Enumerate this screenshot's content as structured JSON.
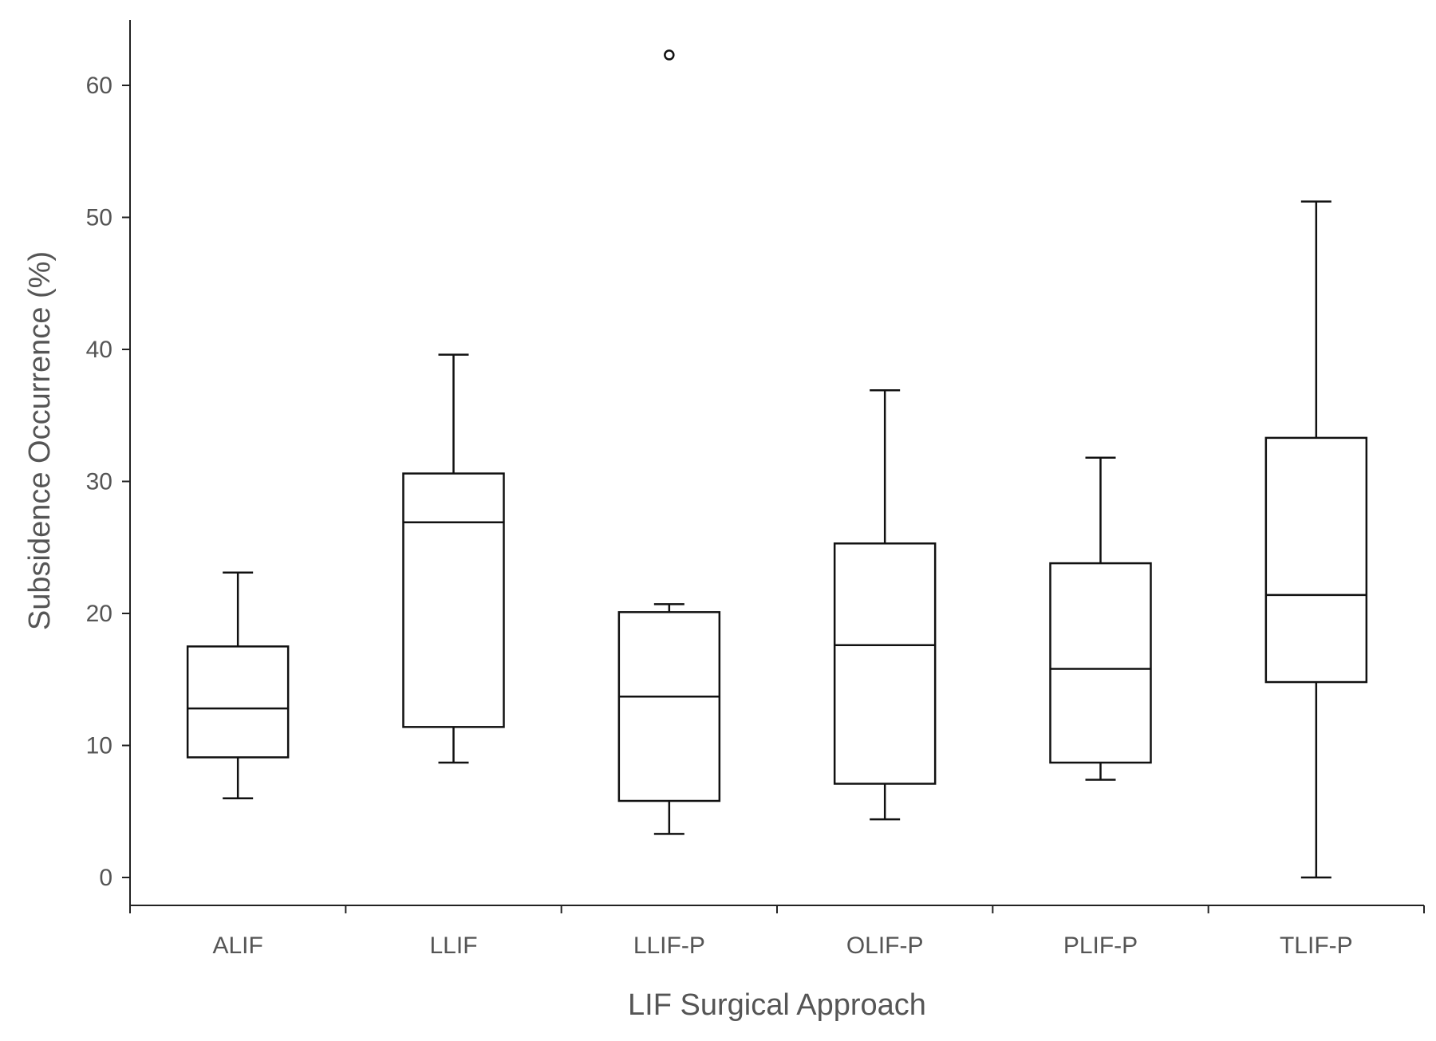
{
  "chart_data": {
    "type": "boxplot",
    "xlabel": "LIF Surgical Approach",
    "ylabel": "Subsidence Occurrence (%)",
    "ylim": [
      -2,
      65
    ],
    "yticks": [
      0,
      10,
      20,
      30,
      40,
      50,
      60
    ],
    "grid": false,
    "legend": "none",
    "categories": [
      "ALIF",
      "LLIF",
      "LLIF-P",
      "OLIF-P",
      "PLIF-P",
      "TLIF-P"
    ],
    "boxes": [
      {
        "category": "ALIF",
        "min": 6.0,
        "q1": 9.1,
        "median": 12.8,
        "q3": 17.5,
        "max": 23.1,
        "outliers": []
      },
      {
        "category": "LLIF",
        "min": 8.7,
        "q1": 11.4,
        "median": 26.9,
        "q3": 30.6,
        "max": 39.6,
        "outliers": []
      },
      {
        "category": "LLIF-P",
        "min": 3.3,
        "q1": 5.8,
        "median": 13.7,
        "q3": 20.1,
        "max": 20.7,
        "outliers": [
          62.3
        ]
      },
      {
        "category": "OLIF-P",
        "min": 4.4,
        "q1": 7.1,
        "median": 17.6,
        "q3": 25.3,
        "max": 36.9,
        "outliers": []
      },
      {
        "category": "PLIF-P",
        "min": 7.4,
        "q1": 8.7,
        "median": 15.8,
        "q3": 23.8,
        "max": 31.8,
        "outliers": []
      },
      {
        "category": "TLIF-P",
        "min": 0.0,
        "q1": 14.8,
        "median": 21.4,
        "q3": 33.3,
        "max": 51.2,
        "outliers": []
      }
    ]
  }
}
